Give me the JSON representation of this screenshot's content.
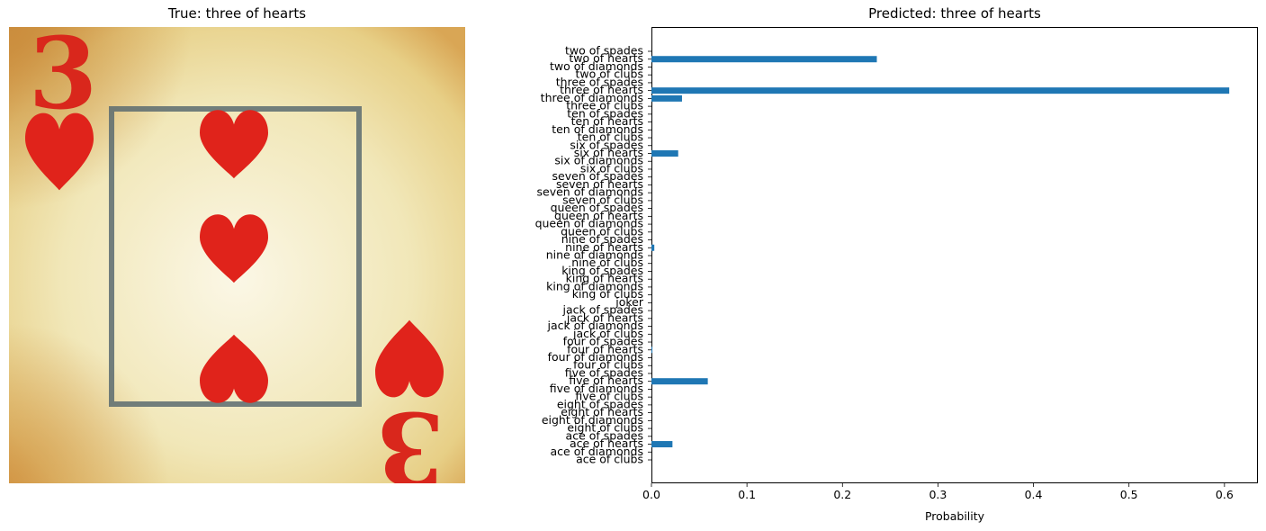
{
  "image_panel": {
    "title": "True: three of hearts",
    "card": {
      "rank_glyph": "3",
      "suit": "hearts",
      "suit_color": "#e0231b",
      "paper_color": "#f1e7b8"
    }
  },
  "chart_data": {
    "type": "bar",
    "orientation": "horizontal",
    "title": "Predicted: three of hearts",
    "xlabel": "Probability",
    "ylabel": "",
    "xlim": [
      0,
      0.635
    ],
    "xticks": [
      "0.0",
      "0.1",
      "0.2",
      "0.3",
      "0.4",
      "0.5",
      "0.6"
    ],
    "grid": false,
    "bar_color": "#1f77b4",
    "categories": [
      "two of spades",
      "two of hearts",
      "two of diamonds",
      "two of clubs",
      "three of spades",
      "three of hearts",
      "three of diamonds",
      "three of clubs",
      "ten of spades",
      "ten of hearts",
      "ten of diamonds",
      "ten of clubs",
      "six of spades",
      "six of hearts",
      "six of diamonds",
      "six of clubs",
      "seven of spades",
      "seven of hearts",
      "seven of diamonds",
      "seven of clubs",
      "queen of spades",
      "queen of hearts",
      "queen of diamonds",
      "queen of clubs",
      "nine of spades",
      "nine of hearts",
      "nine of diamonds",
      "nine of clubs",
      "king of spades",
      "king of hearts",
      "king of diamonds",
      "king of clubs",
      "joker",
      "jack of spades",
      "jack of hearts",
      "jack of diamonds",
      "jack of clubs",
      "four of spades",
      "four of hearts",
      "four of diamonds",
      "four of clubs",
      "five of spades",
      "five of hearts",
      "five of diamonds",
      "five of clubs",
      "eight of spades",
      "eight of hearts",
      "eight of diamonds",
      "eight of clubs",
      "ace of spades",
      "ace of hearts",
      "ace of diamonds",
      "ace of clubs"
    ],
    "values": [
      0.0,
      0.236,
      0.0,
      0.0,
      0.0,
      0.605,
      0.032,
      0.0,
      0.0,
      0.0,
      0.0,
      0.0,
      0.0,
      0.028,
      0.0,
      0.0,
      0.0,
      0.0,
      0.0,
      0.0,
      0.0,
      0.0,
      0.0,
      0.0,
      0.0,
      0.003,
      0.0,
      0.0,
      0.0,
      0.0,
      0.0,
      0.0,
      0.0,
      0.0,
      0.0,
      0.0,
      0.0,
      0.0,
      0.001,
      0.0,
      0.0,
      0.0,
      0.059,
      0.0,
      0.0,
      0.0,
      0.0,
      0.0,
      0.0,
      0.0,
      0.022,
      0.0,
      0.0
    ]
  }
}
